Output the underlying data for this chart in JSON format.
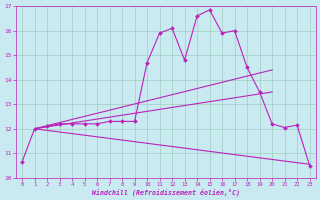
{
  "xlabel": "Windchill (Refroidissement éolien,°C)",
  "ylabel": "",
  "xlim": [
    -0.5,
    23.5
  ],
  "ylim": [
    10,
    17
  ],
  "yticks": [
    10,
    11,
    12,
    13,
    14,
    15,
    16,
    17
  ],
  "xticks": [
    0,
    1,
    2,
    3,
    4,
    5,
    6,
    7,
    8,
    9,
    10,
    11,
    12,
    13,
    14,
    15,
    16,
    17,
    18,
    19,
    20,
    21,
    22,
    23
  ],
  "background_color": "#c8eaf0",
  "grid_color": "#9ecebe",
  "line_color": "#bb22bb",
  "curve_x": [
    0,
    1,
    2,
    3,
    4,
    5,
    6,
    7,
    8,
    9,
    10,
    11,
    12,
    13,
    14,
    15,
    16,
    17,
    18,
    19,
    20,
    21,
    22,
    23
  ],
  "curve_y": [
    10.65,
    12.0,
    12.1,
    12.2,
    12.2,
    12.2,
    12.2,
    12.3,
    12.3,
    12.3,
    14.7,
    15.9,
    16.1,
    14.8,
    16.6,
    16.85,
    15.9,
    16.0,
    14.5,
    13.5,
    12.2,
    12.05,
    12.15,
    10.5
  ],
  "line2_x": [
    1,
    20
  ],
  "line2_y": [
    12.0,
    14.4
  ],
  "line3_x": [
    1,
    20
  ],
  "line3_y": [
    12.0,
    13.5
  ],
  "line4_x": [
    1,
    20
  ],
  "line4_y": [
    12.0,
    10.55
  ],
  "marker_curve": true,
  "marker_size": 2.5
}
